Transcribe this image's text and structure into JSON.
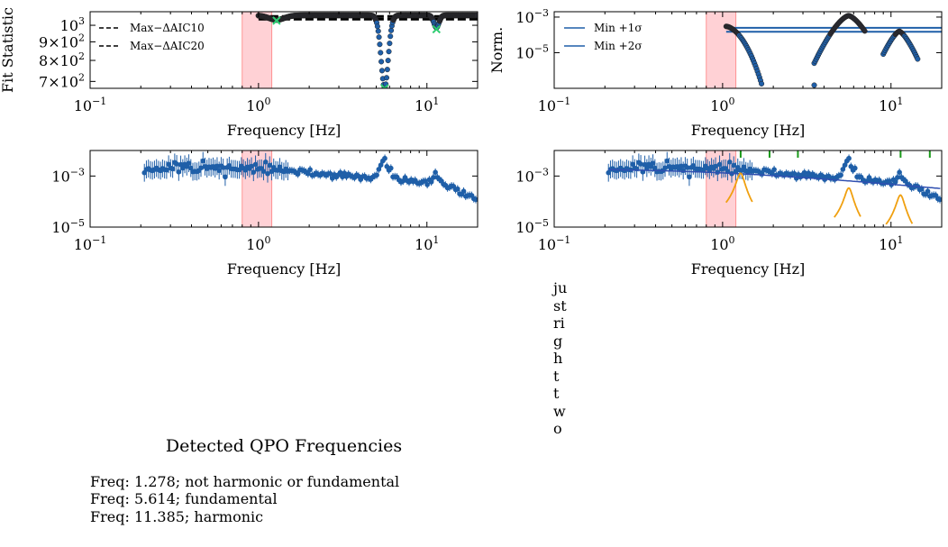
{
  "colors": {
    "points": "#1f5fa8",
    "points_dark": "#2b2b33",
    "qpo_band": "#ff9aa2",
    "model": "#2f4fb0",
    "lorentz": "#f0a010",
    "marker_green": "#2ecc71",
    "tick_green": "#1a9a1a"
  },
  "xticks": [
    "10",
    "10",
    "10"
  ],
  "xtick_exps": [
    "−1",
    "0",
    "1"
  ],
  "xlabel": "Frequency [Hz]",
  "qpo_band": [
    0.8,
    1.2
  ],
  "chart_data": [
    {
      "id": "fit-statistic",
      "type": "scatter",
      "xscale": "log",
      "yscale": "log",
      "xlim": [
        0.1,
        20
      ],
      "ylim": [
        670,
        1090
      ],
      "ylabel": "Fit Statistic",
      "yticks": [
        {
          "value": 700,
          "mant": "7×10",
          "exp": "2"
        },
        {
          "value": 800,
          "mant": "8×10",
          "exp": "2"
        },
        {
          "value": 900,
          "mant": "9×10",
          "exp": "2"
        },
        {
          "value": 1000,
          "mant": "10",
          "exp": "3"
        }
      ],
      "hlines": [
        {
          "name": "Max−ΔAIC10",
          "value": 1058,
          "style": "dashed"
        },
        {
          "name": "Max−ΔAIC20",
          "value": 1052,
          "style": "dashed"
        }
      ],
      "markers": [
        {
          "x": 1.28,
          "y": 1030
        },
        {
          "x": 5.61,
          "y": 670
        },
        {
          "x": 11.39,
          "y": 975
        }
      ]
    },
    {
      "id": "norm",
      "type": "scatter",
      "xscale": "log",
      "yscale": "log",
      "xlim": [
        0.1,
        20
      ],
      "ylim": [
        1e-07,
        0.002
      ],
      "ylabel": "Norm.",
      "yticks": [
        {
          "value": 0.001,
          "mant": "10",
          "exp": "−3"
        },
        {
          "value": 1e-05,
          "mant": "10",
          "exp": "−5"
        }
      ],
      "hlines": [
        {
          "name": "Min +1σ",
          "value": 0.00025
        },
        {
          "name": "Min +2σ",
          "value": 0.00015
        }
      ]
    },
    {
      "id": "psd",
      "type": "scatter",
      "xscale": "log",
      "yscale": "log",
      "xlim": [
        0.1,
        20
      ],
      "ylim": [
        1e-05,
        0.01
      ],
      "yticks": [
        {
          "value": 0.001,
          "mant": "10",
          "exp": "−3"
        },
        {
          "value": 1e-05,
          "mant": "10",
          "exp": "−5"
        }
      ]
    },
    {
      "id": "psd-model",
      "type": "line",
      "xscale": "log",
      "yscale": "log",
      "xlim": [
        0.1,
        20
      ],
      "ylim": [
        1e-05,
        0.01
      ],
      "yticks": [
        {
          "value": 0.001,
          "mant": "10",
          "exp": "−3"
        },
        {
          "value": 1e-05,
          "mant": "10",
          "exp": "−5"
        }
      ],
      "lorentz_centers": [
        1.278,
        5.614,
        11.385
      ],
      "top_ticks": [
        1.28,
        1.9,
        2.8,
        11.4,
        17.0
      ]
    }
  ],
  "qpo": {
    "title": "Detected QPO Frequencies",
    "lines": [
      "Freq: 1.278; not harmonic or fundamental",
      "Freq: 5.614; fundamental",
      "Freq: 11.385; harmonic"
    ]
  },
  "side_text": "just\nright\ntwo"
}
